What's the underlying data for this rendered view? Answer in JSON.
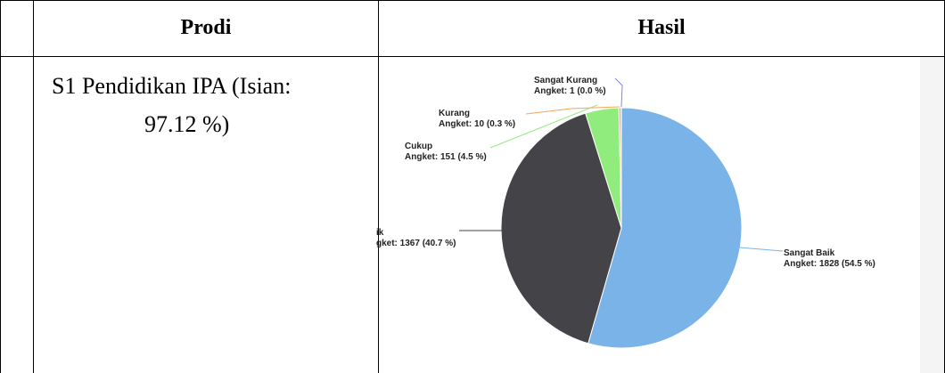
{
  "table": {
    "col_stub": "",
    "header_prodi": "Prodi",
    "header_hasil": "Hasil",
    "row": {
      "prodi_line1": "S1 Pendidikan IPA (Isian:",
      "prodi_line2": "97.12  %)"
    }
  },
  "chart_data": {
    "type": "pie",
    "title": "",
    "slices": [
      {
        "name": "Sangat Baik",
        "label": "Angket: 1828 (54.5 %)",
        "value": 1828,
        "percent": 54.5,
        "color": "#7ab3e8"
      },
      {
        "name": "ik",
        "label": "gket: 1367 (40.7 %)",
        "value": 1367,
        "percent": 40.7,
        "color": "#434348"
      },
      {
        "name": "Cukup",
        "label": "Angket: 151 (4.5 %)",
        "value": 151,
        "percent": 4.5,
        "color": "#90ed7d"
      },
      {
        "name": "Kurang",
        "label": "Angket: 10 (0.3 %)",
        "value": 10,
        "percent": 0.3,
        "color": "#f7a35c"
      },
      {
        "name": "Sangat Kurang",
        "label": "Angket: 1 (0.0 %)",
        "value": 1,
        "percent": 0.0,
        "color": "#8085e9"
      }
    ]
  }
}
